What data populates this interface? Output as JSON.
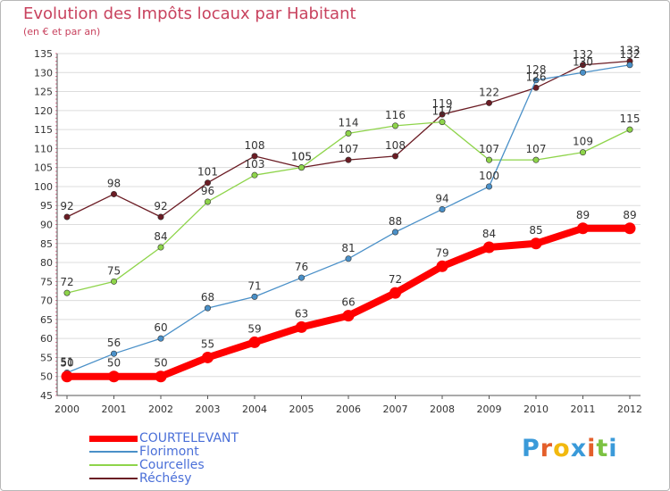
{
  "title": "Evolution des Impôts locaux par Habitant",
  "subtitle": "(en € et par an)",
  "brand": {
    "letters": [
      "P",
      "r",
      "o",
      "x",
      "i",
      "t",
      "i"
    ],
    "colors": [
      "#3a9ad9",
      "#e45f2b",
      "#f2b90f",
      "#3a9ad9",
      "#e45f2b",
      "#7cc242",
      "#3a9ad9"
    ]
  },
  "chart_data": {
    "type": "line",
    "title": "Evolution des Impôts locaux par Habitant",
    "xlabel": "",
    "ylabel": "(en € et par an)",
    "ylim": [
      45,
      135
    ],
    "yticks": [
      45,
      50,
      55,
      60,
      65,
      70,
      75,
      80,
      85,
      90,
      95,
      100,
      105,
      110,
      115,
      120,
      125,
      130,
      135
    ],
    "grid": "horizontal",
    "categories": [
      "2000",
      "2001",
      "2002",
      "2003",
      "2004",
      "2005",
      "2006",
      "2007",
      "2008",
      "2009",
      "2010",
      "2011",
      "2012"
    ],
    "series": [
      {
        "name": "Réchésy",
        "color": "#6b1c24",
        "weight": "thin",
        "values": [
          92,
          98,
          92,
          101,
          108,
          105,
          107,
          108,
          119,
          122,
          126,
          132,
          133
        ]
      },
      {
        "name": "Courcelles",
        "color": "#8ed44a",
        "weight": "thin",
        "values": [
          72,
          75,
          84,
          96,
          103,
          105,
          114,
          116,
          117,
          107,
          107,
          109,
          115
        ]
      },
      {
        "name": "Florimont",
        "color": "#4a90c8",
        "weight": "thin",
        "values": [
          51,
          56,
          60,
          68,
          71,
          76,
          81,
          88,
          94,
          100,
          128,
          130,
          132
        ]
      },
      {
        "name": "COURTELEVANT",
        "color": "#ff0000",
        "weight": "thick",
        "values": [
          50,
          50,
          50,
          55,
          59,
          63,
          66,
          72,
          79,
          84,
          85,
          89,
          89
        ]
      }
    ],
    "legend": {
      "placement": "bottom-left",
      "items": [
        {
          "label": "COURTELEVANT",
          "color": "#ff0000",
          "weight": "thick"
        },
        {
          "label": "Florimont",
          "color": "#4a90c8",
          "weight": "thin"
        },
        {
          "label": "Courcelles",
          "color": "#8ed44a",
          "weight": "thin"
        },
        {
          "label": "Réchésy",
          "color": "#6b1c24",
          "weight": "thin"
        }
      ]
    }
  }
}
